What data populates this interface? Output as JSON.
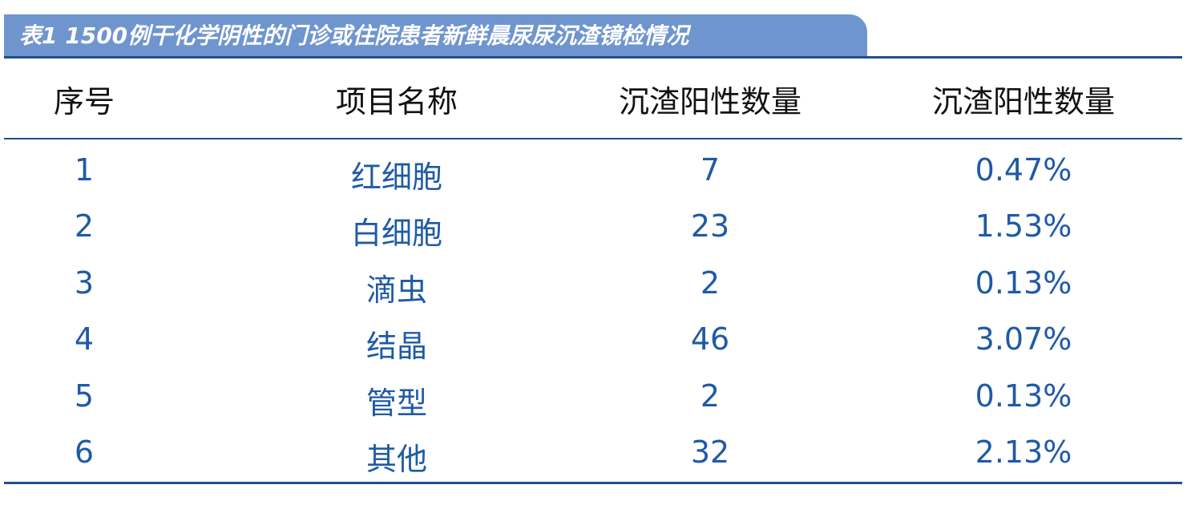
{
  "table": {
    "title": "表1 1500例干化学阴性的门诊或住院患者新鲜晨尿尿沉渣镜检情况",
    "header": [
      "序号",
      "项目名称",
      "沉渣阳性数量",
      "沉渣阳性数量"
    ],
    "rows": [
      [
        "1",
        "红细胞",
        "7",
        "0.47%"
      ],
      [
        "2",
        "白细胞",
        "23",
        "1.53%"
      ],
      [
        "3",
        "滴虫",
        "2",
        "0.13%"
      ],
      [
        "4",
        "结晶",
        "46",
        "3.07%"
      ],
      [
        "5",
        "管型",
        "2",
        "0.13%"
      ],
      [
        "6",
        "其他",
        "32",
        "2.13%"
      ]
    ]
  }
}
